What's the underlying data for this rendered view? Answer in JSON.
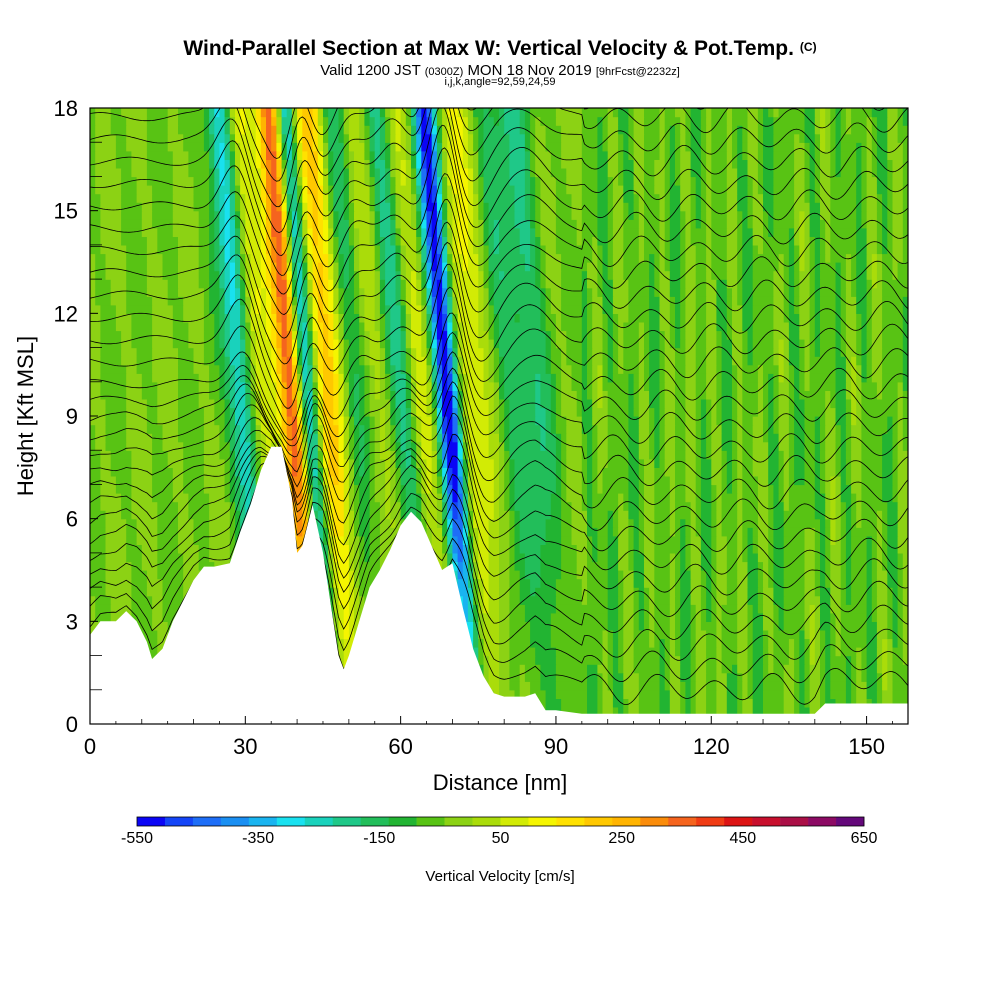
{
  "header": {
    "title": "Wind-Parallel Section at Max W: Vertical Velocity & Pot.Temp.",
    "copyright": "(C)",
    "valid_prefix": "Valid 1200 JST",
    "valid_utc": "(0300Z)",
    "valid_date": "MON 18 Nov 2019",
    "forecast": "[9hrFcst@2232z]",
    "indices": "i,j,k,angle=92,59,24,59"
  },
  "chart_data": {
    "type": "heatmap",
    "title": "Wind-Parallel Section at Max W: Vertical Velocity & Pot.Temp.",
    "xlabel": "Distance [nm]",
    "ylabel": "Height [Kft MSL]",
    "xlim": [
      0,
      158
    ],
    "ylim": [
      0,
      18
    ],
    "x_ticks": [
      "0",
      "30",
      "60",
      "90",
      "120",
      "150"
    ],
    "y_ticks": [
      "0",
      "3",
      "6",
      "9",
      "12",
      "15",
      "18"
    ],
    "colorbar": {
      "label": "Vertical Velocity [cm/s]",
      "tick_labels": [
        "-550",
        "-350",
        "-150",
        "50",
        "250",
        "450",
        "650"
      ],
      "min": -550,
      "max": 650,
      "step": 50
    },
    "terrain": [
      [
        0,
        2.6
      ],
      [
        2,
        3.0
      ],
      [
        5,
        3.0
      ],
      [
        7,
        3.3
      ],
      [
        9,
        3.0
      ],
      [
        11,
        2.4
      ],
      [
        12,
        1.9
      ],
      [
        14,
        2.2
      ],
      [
        16,
        3.0
      ],
      [
        18,
        3.6
      ],
      [
        20,
        4.2
      ],
      [
        22,
        4.6
      ],
      [
        24,
        4.6
      ],
      [
        27,
        4.7
      ],
      [
        29,
        5.6
      ],
      [
        31,
        6.4
      ],
      [
        33,
        7.4
      ],
      [
        35,
        8.1
      ],
      [
        37,
        8.1
      ],
      [
        39,
        6.6
      ],
      [
        40,
        5.0
      ],
      [
        41,
        5.2
      ],
      [
        43,
        6.4
      ],
      [
        45,
        5.0
      ],
      [
        47,
        3.0
      ],
      [
        48,
        2.0
      ],
      [
        49,
        1.6
      ],
      [
        50,
        2.0
      ],
      [
        52,
        3.0
      ],
      [
        54,
        4.0
      ],
      [
        56,
        4.5
      ],
      [
        58,
        5.1
      ],
      [
        60,
        5.8
      ],
      [
        62,
        6.2
      ],
      [
        64,
        5.9
      ],
      [
        66,
        5.2
      ],
      [
        68,
        4.5
      ],
      [
        70,
        4.7
      ],
      [
        72,
        3.4
      ],
      [
        74,
        2.2
      ],
      [
        76,
        1.4
      ],
      [
        78,
        0.9
      ],
      [
        80,
        0.8
      ],
      [
        82,
        0.8
      ],
      [
        84,
        0.8
      ],
      [
        86,
        0.9
      ],
      [
        88,
        0.4
      ],
      [
        90,
        0.4
      ],
      [
        95,
        0.3
      ],
      [
        110,
        0.3
      ],
      [
        140,
        0.3
      ],
      [
        142,
        0.6
      ],
      [
        158,
        0.6
      ]
    ],
    "updrafts": [
      {
        "x": 41,
        "w": 2.6,
        "peak": 480
      },
      {
        "x": 48,
        "w": 3.2,
        "peak": 300
      },
      {
        "x": 35,
        "w": 2.2,
        "peak": 150
      },
      {
        "x": 76,
        "w": 3.5,
        "peak": 170
      },
      {
        "x": 66,
        "w": 3.0,
        "peak": 120
      },
      {
        "x": 57,
        "w": 3.5,
        "peak": 80
      }
    ],
    "downdrafts": [
      {
        "x": 44,
        "w": 2.0,
        "peak": -420
      },
      {
        "x": 31,
        "w": 2.4,
        "peak": -270
      },
      {
        "x": 71,
        "w": 2.2,
        "peak": -580
      },
      {
        "x": 62,
        "w": 2.6,
        "peak": -190
      },
      {
        "x": 53,
        "w": 2.5,
        "peak": -160
      },
      {
        "x": 88,
        "w": 3.0,
        "peak": -150
      },
      {
        "x": 83,
        "w": 3.0,
        "peak": -110
      }
    ],
    "theta_contours": 28
  }
}
